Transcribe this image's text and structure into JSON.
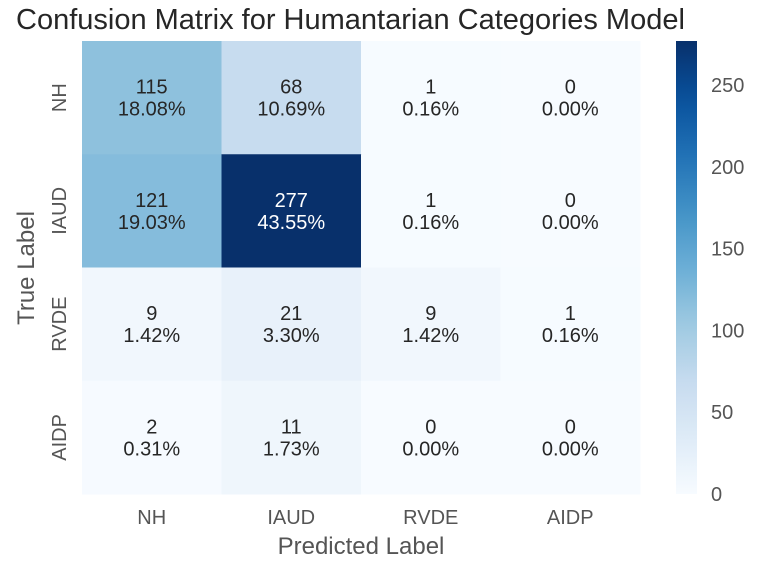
{
  "chart_data": {
    "type": "heatmap",
    "title": "Confusion Matrix for Humantarian Categories Model",
    "xlabel": "Predicted Label",
    "ylabel": "True Label",
    "x_categories": [
      "NH",
      "IAUD",
      "RVDE",
      "AIDP"
    ],
    "y_categories": [
      "NH",
      "IAUD",
      "RVDE",
      "AIDP"
    ],
    "values": [
      [
        115,
        68,
        1,
        0
      ],
      [
        121,
        277,
        1,
        0
      ],
      [
        9,
        21,
        9,
        1
      ],
      [
        2,
        11,
        0,
        0
      ]
    ],
    "percent_labels": [
      [
        "18.08%",
        "10.69%",
        "0.16%",
        "0.00%"
      ],
      [
        "19.03%",
        "43.55%",
        "0.16%",
        "0.00%"
      ],
      [
        "1.42%",
        "3.30%",
        "1.42%",
        "0.16%"
      ],
      [
        "0.31%",
        "1.73%",
        "0.00%",
        "0.00%"
      ]
    ],
    "colorbar": {
      "range": [
        0,
        277
      ],
      "ticks": [
        "0",
        "50",
        "100",
        "150",
        "200",
        "250"
      ],
      "colormap": "Blues"
    },
    "grid": false
  }
}
